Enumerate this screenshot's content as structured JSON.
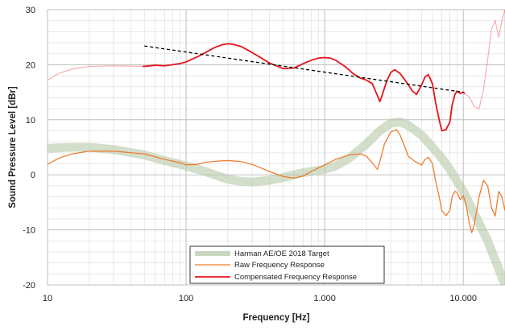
{
  "chart_data": {
    "type": "line",
    "title": "",
    "xlabel": "Frequency [Hz]",
    "ylabel": "Sound Pressure Level [dBr]",
    "xscale": "log",
    "xlim": [
      10,
      20000
    ],
    "ylim": [
      -20,
      30
    ],
    "xticks": [
      10,
      100,
      1000,
      10000
    ],
    "xtick_labels": [
      "10",
      "100",
      "1.000",
      "10.000"
    ],
    "yticks": [
      30,
      20,
      10,
      0,
      -10,
      -20
    ],
    "ytick_labels": [
      "30",
      "20",
      "10",
      "0",
      "-10",
      "-20"
    ],
    "grid": true,
    "legend_position": "bottom-center",
    "series": [
      {
        "name": "Harman AE/OE 2018 Target",
        "color": "#b5c9a9",
        "style": "thick-translucent",
        "x": [
          10,
          12,
          15,
          20,
          30,
          50,
          70,
          100,
          130,
          160,
          200,
          250,
          300,
          400,
          500,
          600,
          700,
          900,
          1000,
          1200,
          1500,
          2000,
          2500,
          3000,
          3500,
          4000,
          5000,
          6000,
          7000,
          8000,
          10000,
          12000,
          15000,
          20000
        ],
        "values": [
          4.8,
          4.9,
          5.0,
          5.0,
          4.6,
          3.6,
          2.6,
          1.6,
          0.8,
          0.0,
          -0.8,
          -1.2,
          -1.3,
          -1.0,
          -0.5,
          0.0,
          0.4,
          0.8,
          1.0,
          1.6,
          3.0,
          5.6,
          8.0,
          9.4,
          9.6,
          9.0,
          7.2,
          5.0,
          3.0,
          1.0,
          -3.0,
          -7.0,
          -12.0,
          -20.0
        ]
      },
      {
        "name": "Raw Frequency Response",
        "color": "#ed7d31",
        "style": "thin",
        "x": [
          10,
          12,
          15,
          20,
          30,
          50,
          70,
          90,
          100,
          120,
          140,
          170,
          200,
          250,
          300,
          400,
          500,
          600,
          700,
          800,
          1000,
          1200,
          1500,
          1800,
          2000,
          2200,
          2400,
          2500,
          2700,
          3000,
          3300,
          3500,
          3800,
          4000,
          4500,
          5000,
          5300,
          5600,
          6000,
          6300,
          6700,
          7000,
          7500,
          8000,
          8300,
          8700,
          9000,
          9500,
          10000,
          10500,
          11000,
          11500,
          12000,
          13000,
          14000,
          15000,
          16000,
          17000,
          18000,
          19000,
          20000
        ],
        "values": [
          1.9,
          3.0,
          3.8,
          4.3,
          4.3,
          3.8,
          2.8,
          2.2,
          1.8,
          1.9,
          2.3,
          2.5,
          2.6,
          2.4,
          1.9,
          0.6,
          -0.3,
          -0.6,
          -0.2,
          0.6,
          1.8,
          2.8,
          3.6,
          3.8,
          3.4,
          2.2,
          1.0,
          2.4,
          5.6,
          7.8,
          8.2,
          7.2,
          5.0,
          3.4,
          2.4,
          1.8,
          2.8,
          3.2,
          2.0,
          -1.0,
          -4.0,
          -6.5,
          -7.4,
          -6.5,
          -4.0,
          -3.0,
          -3.2,
          -4.5,
          -3.8,
          -5.5,
          -8.5,
          -10.5,
          -9.0,
          -4.0,
          -1.0,
          -2.0,
          -6.0,
          -7.5,
          -3.0,
          -4.0,
          -6.5
        ]
      },
      {
        "name": "Compensated Frequency Response",
        "color": "#e8141b",
        "style": "medium",
        "x": [
          10,
          12,
          15,
          20,
          30,
          50,
          60,
          70,
          80,
          90,
          100,
          110,
          120,
          140,
          160,
          180,
          200,
          220,
          250,
          300,
          350,
          400,
          500,
          600,
          700,
          800,
          900,
          1000,
          1100,
          1200,
          1400,
          1600,
          1800,
          2000,
          2200,
          2400,
          2500,
          2600,
          2800,
          3000,
          3200,
          3500,
          3800,
          4000,
          4300,
          4600,
          5000,
          5300,
          5600,
          6000,
          6300,
          6700,
          7000,
          7500,
          8000,
          8300,
          8700,
          9000,
          9500,
          10000,
          11000,
          12000,
          13000,
          14000,
          15000,
          16000,
          17000,
          18000,
          19000,
          20000
        ],
        "values": [
          17.2,
          18.4,
          19.2,
          19.7,
          19.8,
          19.7,
          19.9,
          19.8,
          20.0,
          20.2,
          20.5,
          21.0,
          21.4,
          22.3,
          23.1,
          23.6,
          23.8,
          23.7,
          23.3,
          22.2,
          21.2,
          20.3,
          19.3,
          19.4,
          20.2,
          20.8,
          21.2,
          21.3,
          21.2,
          20.8,
          19.7,
          18.4,
          17.6,
          17.2,
          16.6,
          14.4,
          13.3,
          14.5,
          17.0,
          18.6,
          19.1,
          18.4,
          17.2,
          16.4,
          15.2,
          14.6,
          16.3,
          17.8,
          18.2,
          16.5,
          13.2,
          10.0,
          8.0,
          8.2,
          9.6,
          12.6,
          14.6,
          15.2,
          14.8,
          15.0,
          14.2,
          12.4,
          12.0,
          15.5,
          21.0,
          26.5,
          28.0,
          25.0,
          28.0,
          30.0
        ]
      },
      {
        "name": "Trend line",
        "color": "#000000",
        "style": "dashed",
        "x": [
          50,
          10000
        ],
        "values": [
          23.4,
          15.0
        ]
      }
    ]
  }
}
